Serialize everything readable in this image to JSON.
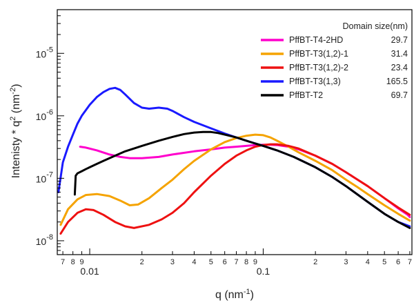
{
  "chart_data": {
    "type": "line",
    "title": "",
    "xlabel": {
      "base": "q (nm",
      "sup": "-1",
      "end": ")"
    },
    "ylabel": {
      "a": "Intenisty * q",
      "sup1": "2",
      "b": " (nm",
      "sup2": "-2",
      "c": ")"
    },
    "x_scale": "log",
    "y_scale": "log",
    "xlim": [
      0.0065,
      0.72
    ],
    "ylim": [
      6e-09,
      5e-05
    ],
    "x_major_ticks": [
      {
        "v": 0.01,
        "label": "0.01"
      },
      {
        "v": 0.1,
        "label": "0.1"
      }
    ],
    "x_minor_ticks": [
      {
        "v": 0.007,
        "label": "7"
      },
      {
        "v": 0.008,
        "label": "8"
      },
      {
        "v": 0.009,
        "label": "9"
      },
      {
        "v": 0.02,
        "label": "2"
      },
      {
        "v": 0.03,
        "label": "3"
      },
      {
        "v": 0.04,
        "label": "4"
      },
      {
        "v": 0.05,
        "label": "5"
      },
      {
        "v": 0.06,
        "label": "6"
      },
      {
        "v": 0.07,
        "label": "7"
      },
      {
        "v": 0.08,
        "label": "8"
      },
      {
        "v": 0.09,
        "label": "9"
      },
      {
        "v": 0.2,
        "label": "2"
      },
      {
        "v": 0.3,
        "label": "3"
      },
      {
        "v": 0.4,
        "label": "4"
      },
      {
        "v": 0.5,
        "label": "5"
      },
      {
        "v": 0.6,
        "label": "6"
      },
      {
        "v": 0.7,
        "label": "7"
      }
    ],
    "y_major_ticks": [
      {
        "v": 1e-08,
        "mant": "10",
        "exp": "-8"
      },
      {
        "v": 1e-07,
        "mant": "10",
        "exp": "-7"
      },
      {
        "v": 1e-06,
        "mant": "10",
        "exp": "-6"
      },
      {
        "v": 1e-05,
        "mant": "10",
        "exp": "-5"
      }
    ],
    "grid": false,
    "legend_position": "top-right",
    "legend_header": "Domain size(nm)",
    "series": [
      {
        "name": "PffBT-T4-2HD",
        "domain_size": "29.7",
        "color": "#ff00cc",
        "x": [
          0.0088,
          0.0095,
          0.011,
          0.013,
          0.015,
          0.017,
          0.02,
          0.025,
          0.03,
          0.04,
          0.05,
          0.06,
          0.07,
          0.08,
          0.09,
          0.1,
          0.11,
          0.12,
          0.14,
          0.16,
          0.2,
          0.25,
          0.3,
          0.35,
          0.4,
          0.5,
          0.6,
          0.68,
          0.7
        ],
        "y": [
          3.2e-07,
          3.1e-07,
          2.8e-07,
          2.4e-07,
          2.2e-07,
          2.1e-07,
          2.1e-07,
          2.2e-07,
          2.4e-07,
          2.7e-07,
          2.9e-07,
          3.1e-07,
          3.2e-07,
          3.3e-07,
          3.4e-07,
          3.45e-07,
          3.45e-07,
          3.4e-07,
          3.2e-07,
          2.9e-07,
          2.3e-07,
          1.7e-07,
          1.25e-07,
          9.5e-08,
          7.5e-08,
          4.8e-08,
          3.3e-08,
          2.6e-08,
          2.4e-08
        ]
      },
      {
        "name": "PffBT-T3(1,2)-1",
        "domain_size": "31.4",
        "color": "#f5a300",
        "x": [
          0.0068,
          0.0075,
          0.0085,
          0.0095,
          0.011,
          0.013,
          0.015,
          0.017,
          0.019,
          0.022,
          0.026,
          0.03,
          0.035,
          0.04,
          0.05,
          0.06,
          0.07,
          0.08,
          0.09,
          0.1,
          0.11,
          0.12,
          0.14,
          0.16,
          0.2,
          0.25,
          0.3,
          0.35,
          0.4,
          0.5,
          0.6,
          0.7
        ],
        "y": [
          1.8e-08,
          3.2e-08,
          4.6e-08,
          5.4e-08,
          5.6e-08,
          5.2e-08,
          4.4e-08,
          3.7e-08,
          3.8e-08,
          4.8e-08,
          7e-08,
          9.5e-08,
          1.4e-07,
          1.9e-07,
          2.9e-07,
          3.8e-07,
          4.4e-07,
          4.8e-07,
          5e-07,
          4.9e-07,
          4.5e-07,
          4e-07,
          3.2e-07,
          2.6e-07,
          1.9e-07,
          1.35e-07,
          9.5e-08,
          7.2e-08,
          5.6e-08,
          3.7e-08,
          2.7e-08,
          2.1e-08
        ]
      },
      {
        "name": "PffBT-T3(1,2)-2",
        "domain_size": "23.4",
        "color": "#ee1111",
        "x": [
          0.0068,
          0.0075,
          0.0085,
          0.0095,
          0.0105,
          0.012,
          0.014,
          0.016,
          0.018,
          0.022,
          0.026,
          0.03,
          0.035,
          0.04,
          0.05,
          0.06,
          0.07,
          0.08,
          0.09,
          0.1,
          0.11,
          0.12,
          0.14,
          0.16,
          0.2,
          0.25,
          0.3,
          0.35,
          0.4,
          0.5,
          0.6,
          0.7
        ],
        "y": [
          1.3e-08,
          2e-08,
          2.8e-08,
          3.2e-08,
          3.1e-08,
          2.6e-08,
          2e-08,
          1.7e-08,
          1.6e-08,
          1.8e-08,
          2.2e-08,
          2.8e-08,
          4e-08,
          6e-08,
          1.1e-07,
          1.7e-07,
          2.3e-07,
          2.8e-07,
          3.2e-07,
          3.4e-07,
          3.5e-07,
          3.5e-07,
          3.3e-07,
          3e-07,
          2.3e-07,
          1.7e-07,
          1.25e-07,
          9.5e-08,
          7.5e-08,
          4.8e-08,
          3.4e-08,
          2.6e-08
        ]
      },
      {
        "name": "PffBT-T3(1,3)",
        "domain_size": "165.5",
        "color": "#1a1aff",
        "x": [
          0.0066,
          0.007,
          0.0075,
          0.008,
          0.0085,
          0.009,
          0.01,
          0.011,
          0.012,
          0.013,
          0.014,
          0.015,
          0.016,
          0.018,
          0.02,
          0.022,
          0.025,
          0.028,
          0.03,
          0.035,
          0.04,
          0.05,
          0.06,
          0.07,
          0.08,
          0.1,
          0.12,
          0.15,
          0.2,
          0.25,
          0.3,
          0.4,
          0.5,
          0.6,
          0.7
        ],
        "y": [
          6e-08,
          1.8e-07,
          3.2e-07,
          5e-07,
          7.5e-07,
          1e-06,
          1.5e-06,
          2e-06,
          2.4e-06,
          2.7e-06,
          2.8e-06,
          2.6e-06,
          2.2e-06,
          1.6e-06,
          1.35e-06,
          1.3e-06,
          1.35e-06,
          1.3e-06,
          1.2e-06,
          9.5e-07,
          8e-07,
          6.3e-07,
          5.2e-07,
          4.5e-07,
          4e-07,
          3.3e-07,
          2.8e-07,
          2.2e-07,
          1.5e-07,
          1.05e-07,
          7.5e-08,
          4.2e-08,
          2.7e-08,
          2e-08,
          1.7e-08
        ]
      },
      {
        "name": "PffBT-T2",
        "domain_size": "69.7",
        "color": "#000000",
        "x": [
          0.0082,
          0.0083,
          0.0085,
          0.009,
          0.0095,
          0.01,
          0.011,
          0.012,
          0.014,
          0.016,
          0.018,
          0.02,
          0.025,
          0.03,
          0.035,
          0.04,
          0.045,
          0.05,
          0.055,
          0.06,
          0.07,
          0.08,
          0.09,
          0.1,
          0.12,
          0.15,
          0.2,
          0.25,
          0.3,
          0.4,
          0.5,
          0.6,
          0.7
        ],
        "y": [
          5.5e-08,
          1.1e-07,
          1.2e-07,
          1.3e-07,
          1.4e-07,
          1.5e-07,
          1.7e-07,
          1.9e-07,
          2.3e-07,
          2.7e-07,
          3e-07,
          3.3e-07,
          4e-07,
          4.6e-07,
          5.1e-07,
          5.4e-07,
          5.5e-07,
          5.5e-07,
          5.3e-07,
          5e-07,
          4.5e-07,
          4e-07,
          3.6e-07,
          3.3e-07,
          2.8e-07,
          2.2e-07,
          1.5e-07,
          1.05e-07,
          7.5e-08,
          4.2e-08,
          2.7e-08,
          2e-08,
          1.6e-08
        ]
      }
    ]
  }
}
